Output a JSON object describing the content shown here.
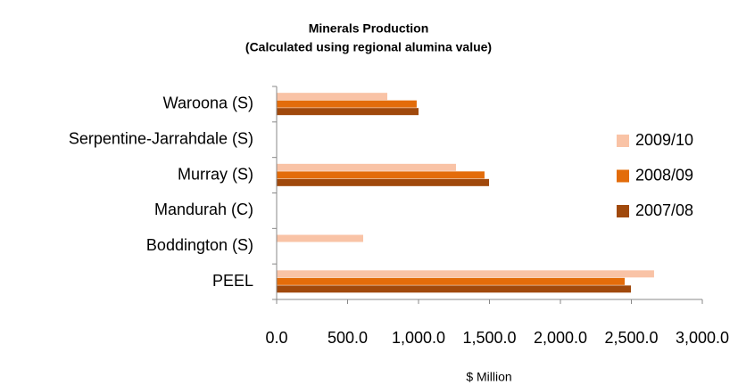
{
  "chart_data": {
    "type": "hbar",
    "title": "Minerals Production",
    "subtitle": "(Calculated using regional alumina value)",
    "x_label": "$ Million",
    "categories": [
      "Waroona (S)",
      "Serpentine-Jarrahdale (S)",
      "Murray (S)",
      "Mandurah (C)",
      "Boddington (S)",
      "PEEL"
    ],
    "series": [
      {
        "name": "2009/10",
        "color": "#f9c3a6",
        "values": [
          780,
          null,
          1264,
          null,
          610,
          2660
        ]
      },
      {
        "name": "2008/09",
        "color": "#e36c0a",
        "values": [
          987,
          null,
          1465,
          null,
          null,
          2453
        ]
      },
      {
        "name": "2007/08",
        "color": "#a0490c",
        "values": [
          1000,
          null,
          1497,
          null,
          null,
          2497
        ]
      }
    ],
    "xlim": [
      0,
      3000
    ],
    "xticks": [
      {
        "value": 0,
        "label": "0.0"
      },
      {
        "value": 500,
        "label": "500.0"
      },
      {
        "value": 1000,
        "label": "1,000.0"
      },
      {
        "value": 1500,
        "label": "1,500.0"
      },
      {
        "value": 2000,
        "label": "2,000.0"
      },
      {
        "value": 2500,
        "label": "2,500.0"
      },
      {
        "value": 3000,
        "label": "3,000.0"
      }
    ],
    "legend": "right"
  }
}
